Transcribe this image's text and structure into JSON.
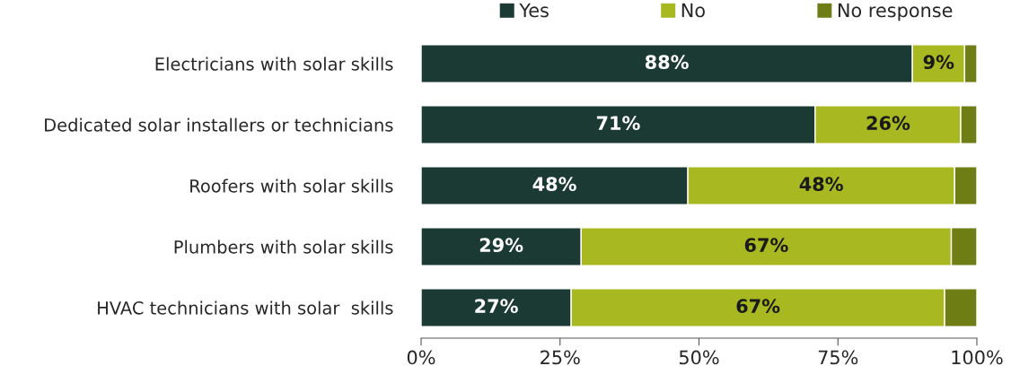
{
  "chart_data": {
    "type": "bar",
    "orientation": "horizontal",
    "stacked": true,
    "categories": [
      "Electricians with solar skills",
      "Dedicated solar installers or technicians",
      "Roofers with solar skills",
      "Plumbers with solar skills",
      "HVAC technicians with solar  skills"
    ],
    "series": [
      {
        "name": "Yes",
        "color": "#1c3a34",
        "values": [
          88.4,
          70.9,
          48.0,
          28.8,
          27.0
        ],
        "value_labels": [
          "88%",
          "71%",
          "48%",
          "29%",
          "27%"
        ]
      },
      {
        "name": "No",
        "color": "#a8b820",
        "values": [
          9.4,
          26.2,
          48.0,
          66.6,
          67.2
        ],
        "value_labels": [
          "9%",
          "26%",
          "48%",
          "67%",
          "67%"
        ]
      },
      {
        "name": "No response",
        "color": "#6e7d14",
        "values": [
          2.2,
          2.9,
          4.0,
          4.6,
          5.8
        ]
      }
    ],
    "xlim": [
      0,
      100
    ],
    "xticks": [
      {
        "value": 0,
        "label": "0%"
      },
      {
        "value": 25,
        "label": "25%"
      },
      {
        "value": 50,
        "label": "50%"
      },
      {
        "value": 75,
        "label": "75%"
      },
      {
        "value": 100,
        "label": "100%"
      }
    ],
    "legend": "top",
    "grid": false
  }
}
